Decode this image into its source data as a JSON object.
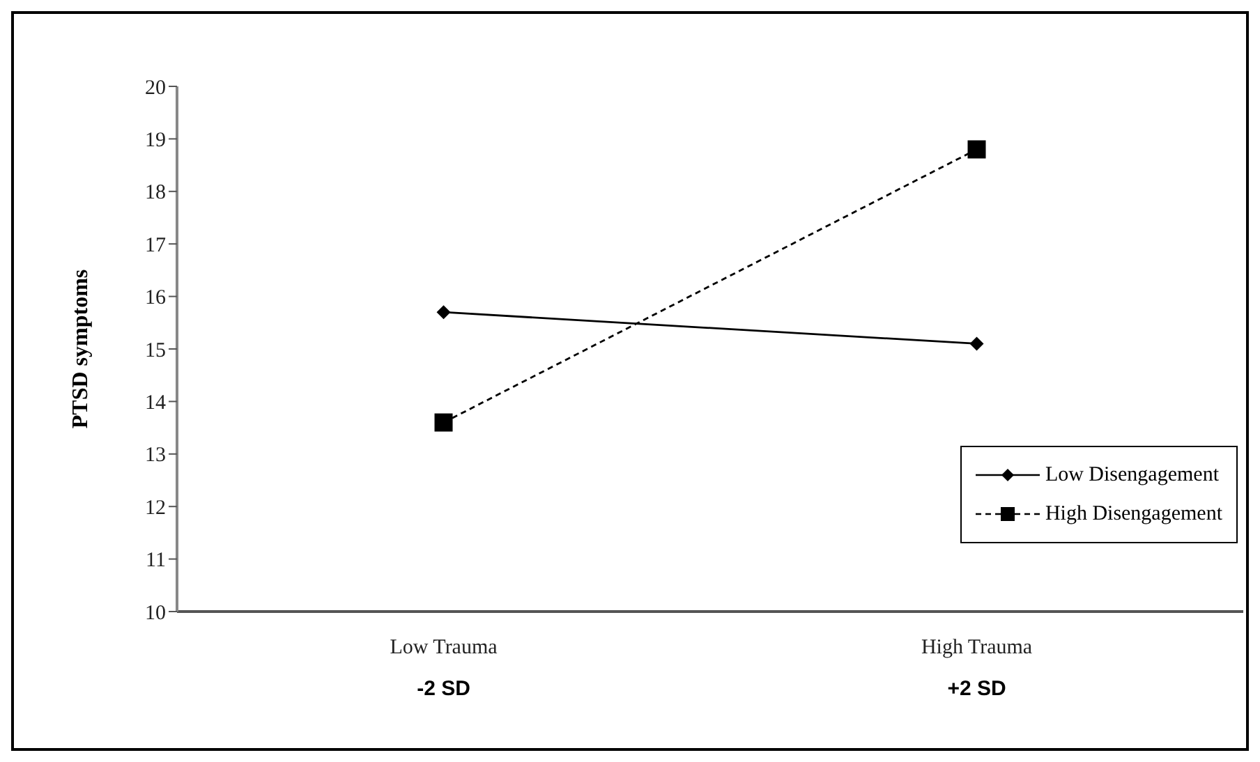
{
  "chart_data": {
    "type": "line",
    "ylabel": "PTSD symptoms",
    "categories": [
      "Low Trauma",
      "High Trauma"
    ],
    "series": [
      {
        "name": "Low Disengagement",
        "color": "#000000",
        "values": [
          15.7,
          15.1
        ],
        "marker": "diamond",
        "line_style": "solid"
      },
      {
        "name": "High Disengagement",
        "color": "#000000",
        "values": [
          13.6,
          18.8
        ],
        "marker": "square",
        "line_style": "dashed"
      }
    ],
    "annotations": [
      "-2 SD",
      "+2 SD"
    ],
    "ylim": [
      10,
      20
    ],
    "yticks": [
      10,
      11,
      12,
      13,
      14,
      15,
      16,
      17,
      18,
      19,
      20
    ],
    "grid": false,
    "legend": "bottom right"
  }
}
